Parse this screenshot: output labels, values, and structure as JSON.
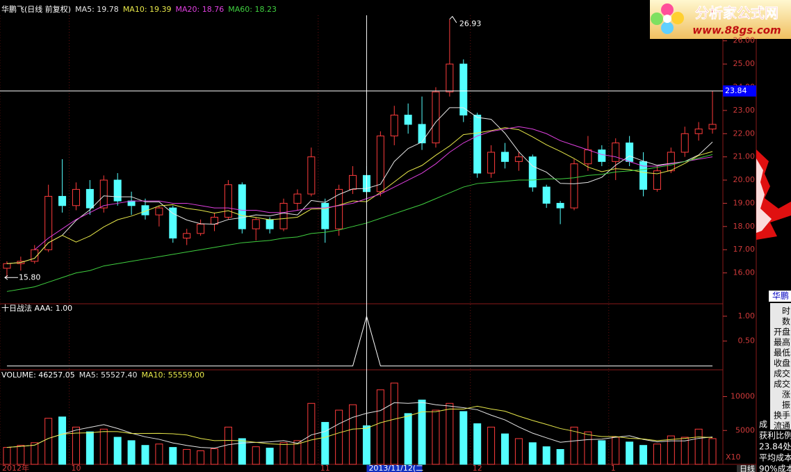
{
  "chart_data": [
    {
      "type": "candlestick",
      "title": "华鹏飞(日线 前复权)",
      "title_color": "#ffffff",
      "up_color": "#ff3c3c",
      "down_color": "#54ffff",
      "ylim": [
        14.7,
        27.1
      ],
      "yticks": [
        {
          "value": 16,
          "label": "16.00"
        },
        {
          "value": 17,
          "label": "17.00"
        },
        {
          "value": 18,
          "label": "18.00"
        },
        {
          "value": 19,
          "label": "19.00"
        },
        {
          "value": 20,
          "label": "20.00"
        },
        {
          "value": 21,
          "label": "21.00"
        },
        {
          "value": 22,
          "label": "22.00"
        },
        {
          "value": 23,
          "label": "23.00"
        },
        {
          "value": 24,
          "label": "24.00"
        },
        {
          "value": 25,
          "label": "25.00"
        },
        {
          "value": 26,
          "label": "26.00"
        }
      ],
      "ohlc": [
        [
          16.2,
          16.5,
          15.8,
          16.4
        ],
        [
          16.4,
          16.7,
          16.1,
          16.5
        ],
        [
          16.5,
          17.2,
          16.4,
          17.0
        ],
        [
          17.0,
          19.8,
          16.9,
          19.3
        ],
        [
          19.3,
          20.9,
          18.6,
          18.9
        ],
        [
          18.9,
          19.9,
          18.7,
          19.6
        ],
        [
          19.6,
          20.0,
          18.5,
          18.8
        ],
        [
          18.8,
          20.2,
          18.6,
          20.0
        ],
        [
          20.0,
          20.3,
          18.9,
          19.1
        ],
        [
          19.1,
          19.5,
          18.5,
          18.9
        ],
        [
          18.9,
          19.2,
          18.3,
          18.5
        ],
        [
          18.5,
          18.9,
          18.0,
          18.8
        ],
        [
          18.8,
          18.9,
          17.3,
          17.5
        ],
        [
          17.5,
          17.9,
          17.2,
          17.7
        ],
        [
          17.7,
          18.3,
          17.6,
          18.1
        ],
        [
          18.1,
          18.6,
          17.8,
          18.4
        ],
        [
          18.4,
          20.0,
          18.3,
          19.8
        ],
        [
          19.8,
          19.9,
          17.7,
          17.9
        ],
        [
          17.9,
          18.4,
          17.4,
          18.3
        ],
        [
          18.3,
          18.4,
          17.7,
          17.9
        ],
        [
          17.9,
          19.2,
          17.8,
          19.0
        ],
        [
          19.0,
          19.6,
          18.7,
          19.4
        ],
        [
          19.4,
          21.4,
          19.3,
          21.0
        ],
        [
          19.0,
          19.2,
          17.3,
          17.9
        ],
        [
          17.9,
          19.8,
          17.6,
          19.6
        ],
        [
          19.6,
          20.6,
          19.4,
          20.2
        ],
        [
          20.2,
          20.6,
          19.2,
          19.5
        ],
        [
          19.5,
          22.1,
          19.3,
          21.9
        ],
        [
          21.9,
          23.2,
          21.5,
          22.8
        ],
        [
          22.8,
          23.3,
          22.0,
          22.4
        ],
        [
          22.4,
          23.6,
          21.3,
          21.6
        ],
        [
          21.6,
          24.0,
          21.4,
          23.8
        ],
        [
          23.8,
          26.93,
          23.6,
          25.0
        ],
        [
          25.0,
          25.2,
          22.5,
          22.8
        ],
        [
          22.8,
          22.9,
          20.1,
          20.3
        ],
        [
          20.3,
          21.5,
          20.1,
          21.2
        ],
        [
          21.2,
          21.6,
          20.5,
          20.8
        ],
        [
          20.8,
          21.2,
          20.4,
          21.0
        ],
        [
          21.0,
          21.1,
          19.5,
          19.7
        ],
        [
          19.7,
          19.8,
          18.8,
          19.0
        ],
        [
          19.0,
          19.1,
          18.1,
          18.8
        ],
        [
          18.8,
          20.9,
          18.7,
          20.7
        ],
        [
          20.7,
          21.9,
          20.4,
          21.3
        ],
        [
          21.3,
          21.5,
          20.6,
          20.8
        ],
        [
          20.8,
          21.8,
          20.0,
          21.6
        ],
        [
          21.6,
          21.9,
          20.6,
          20.8
        ],
        [
          20.8,
          21.2,
          19.3,
          19.6
        ],
        [
          19.6,
          20.6,
          19.5,
          20.4
        ],
        [
          20.4,
          21.4,
          20.3,
          21.2
        ],
        [
          21.2,
          22.3,
          21.0,
          22.0
        ],
        [
          22.0,
          22.5,
          21.7,
          22.2
        ],
        [
          22.2,
          23.84,
          22.0,
          22.4
        ]
      ],
      "series": [
        {
          "label": "MA5: 19.78",
          "color": "#e6e6e6",
          "values": [
            16.4,
            16.45,
            16.63,
            17.3,
            17.62,
            18.26,
            18.72,
            19.32,
            19.28,
            19.28,
            19.06,
            19.06,
            18.56,
            18.28,
            18.12,
            18.1,
            18.3,
            18.38,
            18.5,
            18.46,
            18.58,
            18.5,
            19.12,
            19.04,
            19.38,
            19.62,
            19.64,
            19.82,
            20.8,
            21.36,
            21.64,
            22.5,
            23.12,
            23.12,
            22.7,
            22.62,
            22.02,
            21.22,
            20.6,
            20.34,
            19.86,
            19.84,
            19.9,
            20.12,
            20.64,
            21.04,
            20.82,
            20.64,
            20.72,
            20.8,
            21.08,
            21.64
          ]
        },
        {
          "label": "MA10: 19.39",
          "color": "#e8e84a",
          "values": [
            16.4,
            16.45,
            16.63,
            17.3,
            17.62,
            17.33,
            17.59,
            17.98,
            18.29,
            18.45,
            18.66,
            18.89,
            18.94,
            18.78,
            18.7,
            18.58,
            18.68,
            18.47,
            18.39,
            18.29,
            18.34,
            18.4,
            18.75,
            18.77,
            18.92,
            19.1,
            19.07,
            19.47,
            19.92,
            20.37,
            20.63,
            21.07,
            21.47,
            21.96,
            22.03,
            22.13,
            22.26,
            22.17,
            21.86,
            21.52,
            21.24,
            20.93,
            20.56,
            20.36,
            20.49,
            20.45,
            20.33,
            20.27,
            20.42,
            20.72,
            21.06,
            21.23
          ]
        },
        {
          "label": "MA20: 18.76",
          "color": "#e040e0",
          "values": [
            null,
            null,
            17.0,
            17.5,
            17.9,
            18.3,
            18.6,
            18.9,
            19.0,
            19.1,
            19.1,
            19.1,
            19.0,
            19.0,
            18.9,
            18.8,
            18.8,
            18.7,
            18.7,
            18.6,
            18.6,
            18.7,
            18.8,
            18.8,
            18.9,
            19.0,
            19.2,
            19.4,
            19.7,
            20.0,
            20.3,
            20.7,
            21.2,
            21.6,
            21.9,
            22.1,
            22.2,
            22.3,
            22.2,
            22.0,
            21.7,
            21.5,
            21.3,
            21.1,
            21.0,
            20.8,
            20.6,
            20.6,
            20.7,
            20.8,
            20.9,
            21.0
          ]
        },
        {
          "label": "MA60: 18.23",
          "color": "#40d040",
          "values": [
            15.2,
            15.3,
            15.4,
            15.6,
            15.8,
            16.0,
            16.1,
            16.3,
            16.4,
            16.5,
            16.6,
            16.7,
            16.8,
            16.9,
            17.0,
            17.1,
            17.2,
            17.3,
            17.35,
            17.4,
            17.5,
            17.55,
            17.7,
            17.75,
            17.85,
            18.0,
            18.15,
            18.35,
            18.55,
            18.75,
            18.95,
            19.2,
            19.45,
            19.7,
            19.85,
            19.9,
            19.95,
            20.0,
            20.0,
            20.05,
            20.05,
            20.1,
            20.2,
            20.25,
            20.35,
            20.4,
            20.45,
            20.55,
            20.65,
            20.8,
            20.95,
            21.1
          ]
        }
      ],
      "annotations": [
        {
          "index": 32,
          "value": 26.93,
          "label": "26.93"
        },
        {
          "index": 0,
          "value": 15.8,
          "label": "15.80"
        }
      ],
      "crosshair": {
        "index": 26,
        "value": 23.84,
        "label": "23.84",
        "date": "2013/11/12(二"
      },
      "xlabels": [
        {
          "index": 0,
          "label": "2012年"
        },
        {
          "index": 5,
          "label": "10"
        },
        {
          "index": 23,
          "label": "11"
        },
        {
          "index": 34,
          "label": "12"
        },
        {
          "index": 44,
          "label": "1"
        }
      ],
      "period": "日线"
    },
    {
      "type": "line",
      "title": "十日战法 AAA: 1.00",
      "title_color": "#ffffff",
      "color": "#ffffff",
      "ylim": [
        -0.05,
        1.25
      ],
      "yticks": [
        {
          "value": 0.5,
          "label": "0.50"
        },
        {
          "value": 1,
          "label": "1.00"
        }
      ],
      "values": [
        0,
        0,
        0,
        0,
        0,
        0,
        0,
        0,
        0,
        0,
        0,
        0,
        0,
        0,
        0,
        0,
        0,
        0,
        0,
        0,
        0,
        0,
        0,
        0,
        0,
        0,
        1,
        0,
        0,
        0,
        0,
        0,
        0,
        0,
        0,
        0,
        0,
        0,
        0,
        0,
        0,
        0,
        0,
        0,
        0,
        0,
        0,
        0,
        0,
        0,
        0,
        0
      ]
    },
    {
      "type": "bar",
      "unit": "X10",
      "legend": [
        {
          "label": "VOLUME: 46257.05",
          "color": "#ffffff"
        },
        {
          "label": "MA5: 55527.40",
          "color": "#e6e6e6"
        },
        {
          "label": "MA10: 55559.00",
          "color": "#e8e84a"
        }
      ],
      "ylim": [
        0,
        13850
      ],
      "yticks": [
        5000,
        10000
      ],
      "values": [
        2500,
        2800,
        3200,
        6800,
        7000,
        5500,
        4800,
        5200,
        4000,
        3500,
        2800,
        3000,
        2500,
        2200,
        2000,
        2300,
        5500,
        3800,
        2600,
        2400,
        3200,
        3500,
        9000,
        6200,
        8000,
        8800,
        5700,
        11000,
        12000,
        7500,
        9500,
        8000,
        9000,
        7800,
        6000,
        5500,
        4500,
        3800,
        3200,
        2600,
        2200,
        5500,
        4800,
        3500,
        4000,
        3300,
        2800,
        3000,
        4200,
        4000,
        5200,
        3800
      ],
      "series": [
        {
          "color": "#e6e6e6",
          "values": [
            2500,
            2650,
            2830,
            3830,
            4460,
            5060,
            5460,
            5860,
            5300,
            4600,
            4060,
            3700,
            3160,
            2800,
            2500,
            2400,
            2900,
            3160,
            3240,
            3320,
            3500,
            3100,
            4340,
            4860,
            5980,
            6940,
            7540,
            7940,
            9100,
            9000,
            9140,
            8800,
            8600,
            8360,
            8060,
            7260,
            6560,
            5520,
            4600,
            3920,
            3260,
            3460,
            3660,
            3720,
            4000,
            4220,
            3680,
            3320,
            3460,
            3460,
            3840,
            4040
          ]
        },
        {
          "color": "#e8e84a",
          "values": [
            2500,
            2650,
            2830,
            3830,
            4460,
            4610,
            4660,
            4850,
            4840,
            4550,
            4560,
            4580,
            4510,
            4330,
            3820,
            3500,
            3540,
            3480,
            3250,
            3030,
            2930,
            3000,
            3600,
            4000,
            4650,
            5210,
            5320,
            6140,
            6670,
            7130,
            7760,
            7770,
            8170,
            8150,
            8580,
            8170,
            7850,
            7120,
            6480,
            5900,
            5290,
            4880,
            4380,
            4100,
            4110,
            3850,
            3750,
            3500,
            3670,
            3830,
            4050,
            3950
          ]
        }
      ]
    }
  ],
  "side_panel": {
    "title": "华鹏",
    "rows": [
      "时",
      "数",
      "开盘",
      "最高",
      "最低",
      "收盘",
      "成交",
      "成交",
      "涨",
      "振",
      "换手",
      "流通"
    ],
    "lower": [
      "成",
      "获利比例",
      "23.84处",
      "平均成本",
      "90%成本"
    ]
  },
  "logo": {
    "name": "分析家公式网",
    "url": "www.88gs.com"
  }
}
